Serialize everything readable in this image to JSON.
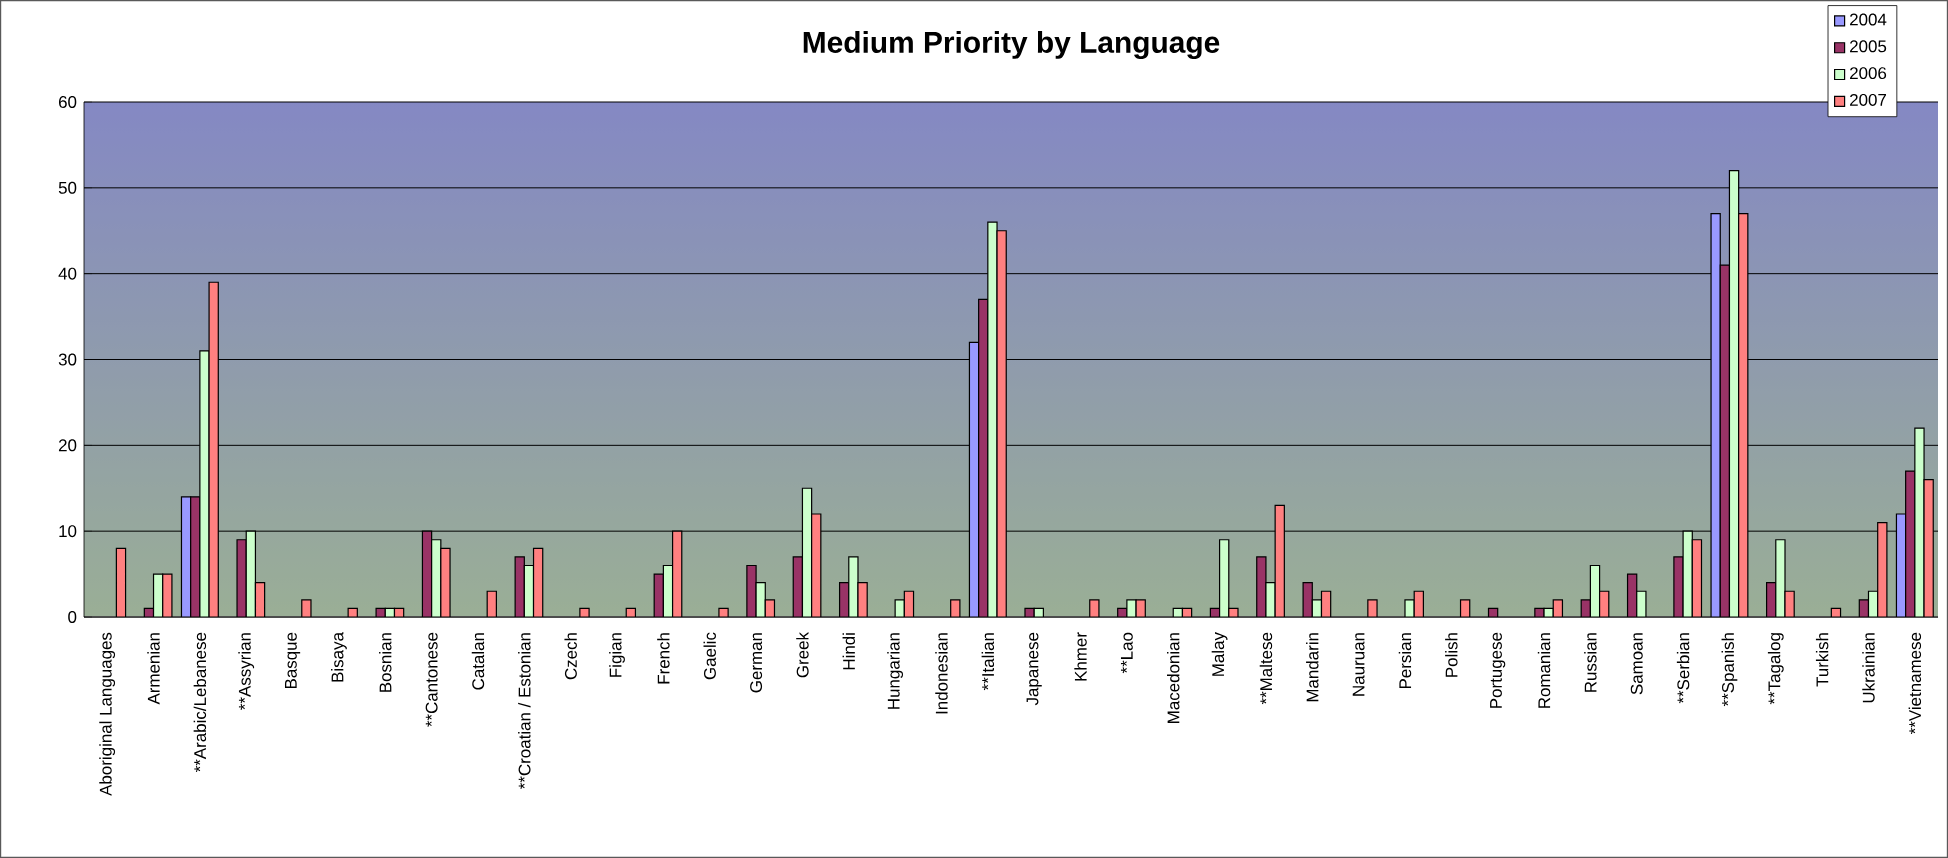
{
  "chart_data": {
    "type": "bar",
    "title": "Medium Priority by Language",
    "categories": [
      "Aboriginal Languages",
      "Armenian",
      "**Arabic/Lebanese",
      "**Assyrian",
      "Basque",
      "Bisaya",
      "Bosnian",
      "**Cantonese",
      "Catalan",
      "**Croatian / Estonian",
      "Czech",
      "Figian",
      "French",
      "Gaelic",
      "German",
      "Greek",
      "Hindi",
      "Hungarian",
      "Indonesian",
      "**Italian",
      "Japanese",
      "Khmer",
      "**Lao",
      "Macedonian",
      "Malay",
      "**Maltese",
      "Mandarin",
      "Nauruan",
      "Persian",
      "Polish",
      "Portugese",
      "Romanian",
      "Russian",
      "Samoan",
      "**Serbian",
      "**Spanish",
      "**Tagalog",
      "Turkish",
      "Ukrainian",
      "**Vietnamese"
    ],
    "series": [
      {
        "name": "2004",
        "color": "#9999ff",
        "values": [
          null,
          null,
          14,
          null,
          null,
          null,
          null,
          null,
          null,
          null,
          null,
          null,
          null,
          null,
          null,
          null,
          null,
          null,
          null,
          32,
          null,
          null,
          null,
          null,
          null,
          null,
          null,
          null,
          null,
          null,
          null,
          null,
          null,
          null,
          null,
          47,
          null,
          null,
          null,
          12
        ]
      },
      {
        "name": "2005",
        "color": "#993366",
        "values": [
          null,
          1,
          14,
          9,
          null,
          null,
          1,
          10,
          null,
          7,
          null,
          null,
          5,
          null,
          6,
          7,
          4,
          null,
          null,
          37,
          1,
          null,
          1,
          null,
          1,
          7,
          4,
          null,
          null,
          null,
          1,
          1,
          2,
          5,
          7,
          41,
          4,
          null,
          2,
          17
        ]
      },
      {
        "name": "2006",
        "color": "#ccffcc",
        "values": [
          null,
          5,
          31,
          10,
          null,
          null,
          1,
          9,
          null,
          6,
          null,
          null,
          6,
          null,
          4,
          15,
          7,
          2,
          null,
          46,
          1,
          null,
          2,
          1,
          9,
          4,
          2,
          null,
          2,
          null,
          null,
          1,
          6,
          3,
          10,
          52,
          9,
          null,
          3,
          22
        ]
      },
      {
        "name": "2007",
        "color": "#ff8080",
        "values": [
          8,
          5,
          39,
          4,
          2,
          1,
          1,
          8,
          3,
          8,
          1,
          1,
          10,
          1,
          2,
          12,
          4,
          3,
          2,
          45,
          null,
          2,
          2,
          1,
          1,
          13,
          3,
          2,
          3,
          2,
          null,
          2,
          3,
          null,
          9,
          47,
          3,
          1,
          11,
          16
        ]
      }
    ],
    "ylim": [
      0,
      60
    ],
    "yticks": [
      0,
      10,
      20,
      30,
      40,
      50,
      60
    ],
    "grid": "y",
    "legend": "top right"
  }
}
